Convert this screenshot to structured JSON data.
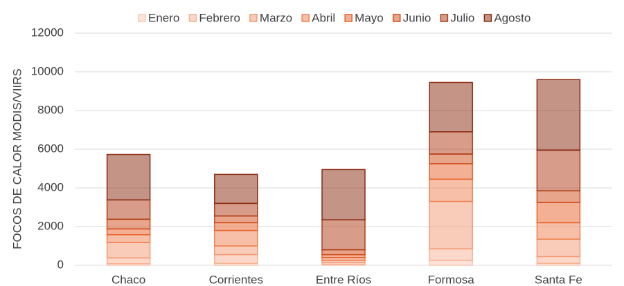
{
  "chart_data": {
    "type": "stacked_bar",
    "y_label": "FOCOS DE CALOR MODIS/VIIRS",
    "categories": [
      "Chaco",
      "Corrientes",
      "Entre Ríos",
      "Formosa",
      "Santa Fe"
    ],
    "series": [
      {
        "name": "Enero",
        "color": "#f9c8b3",
        "values": [
          80,
          100,
          50,
          250,
          100
        ]
      },
      {
        "name": "Febrero",
        "color": "#f7b193",
        "values": [
          300,
          450,
          100,
          600,
          350
        ]
      },
      {
        "name": "Marzo",
        "color": "#f49a74",
        "values": [
          800,
          450,
          100,
          2450,
          900
        ]
      },
      {
        "name": "Abril",
        "color": "#f08050",
        "values": [
          400,
          800,
          150,
          1150,
          850
        ]
      },
      {
        "name": "Mayo",
        "color": "#e8622a",
        "values": [
          300,
          400,
          150,
          800,
          1050
        ]
      },
      {
        "name": "Junio",
        "color": "#d04c1a",
        "values": [
          500,
          350,
          250,
          500,
          600
        ]
      },
      {
        "name": "Julio",
        "color": "#b03c15",
        "values": [
          1000,
          650,
          1550,
          1150,
          2100
        ]
      },
      {
        "name": "Agosto",
        "color": "#8a2a10",
        "values": [
          2350,
          1500,
          2600,
          2550,
          3650
        ]
      }
    ],
    "ylim": [
      0,
      12000
    ],
    "yticks": [
      0,
      2000,
      4000,
      6000,
      8000,
      10000,
      12000
    ],
    "grid": true,
    "legend": "top"
  }
}
